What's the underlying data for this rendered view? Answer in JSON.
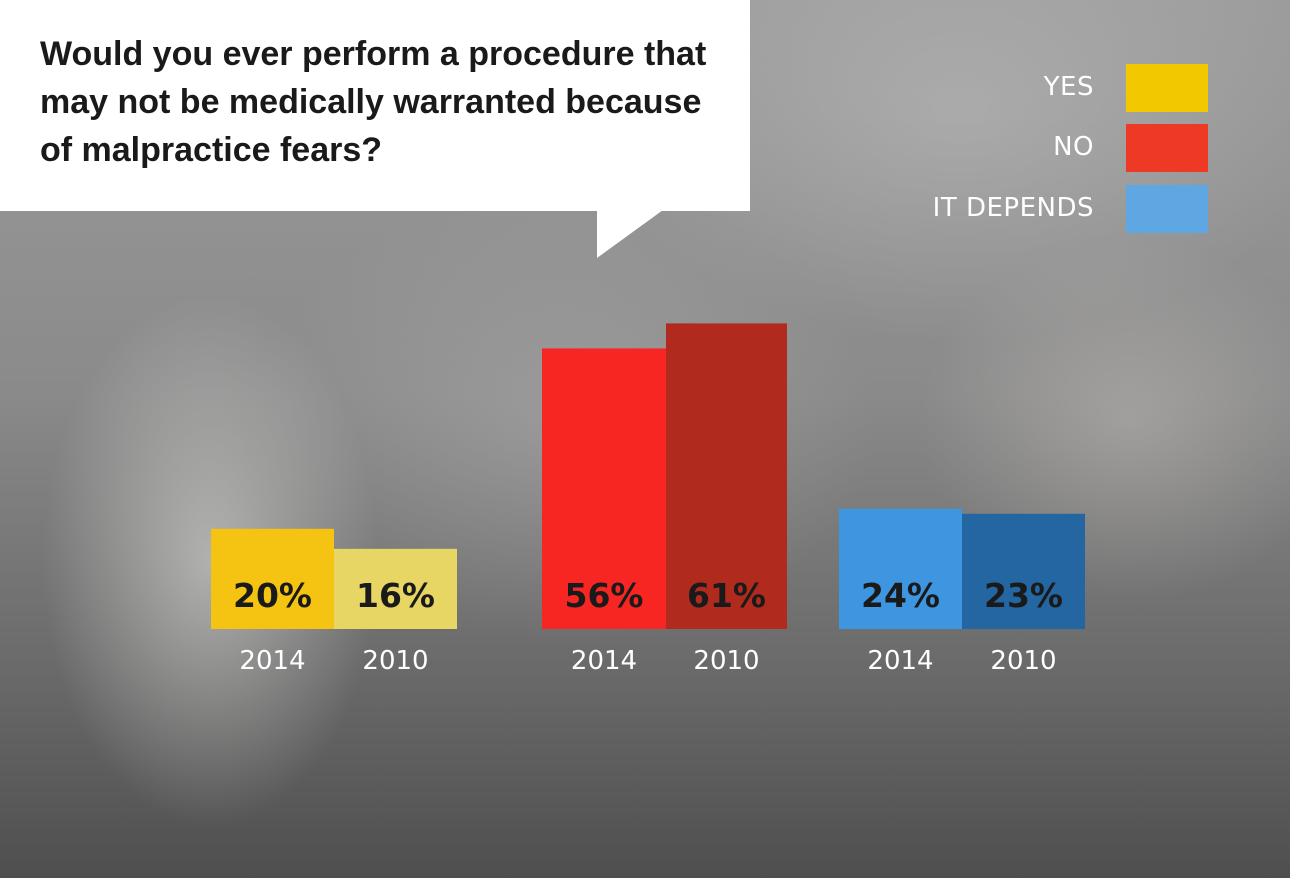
{
  "question": "Would you ever perform a procedure that may not be medically warranted because of malpractice fears?",
  "legend": [
    {
      "label": "YES",
      "color": "#f2c800"
    },
    {
      "label": "NO",
      "color": "#ee3a24"
    },
    {
      "label": "IT DEPENDS",
      "color": "#5fa7e2"
    }
  ],
  "chart_data": {
    "type": "bar",
    "title": "Would you ever perform a procedure that may not be medically warranted because of malpractice fears?",
    "categories": [
      "YES",
      "NO",
      "IT DEPENDS"
    ],
    "series": [
      {
        "name": "2014",
        "values": [
          20,
          56,
          24
        ]
      },
      {
        "name": "2010",
        "values": [
          16,
          61,
          23
        ]
      }
    ],
    "value_labels": [
      [
        "20%",
        "16%"
      ],
      [
        "56%",
        "61%"
      ],
      [
        "24%",
        "23%"
      ]
    ],
    "colors": [
      [
        "#f5c312",
        "#e7d664"
      ],
      [
        "#f72622",
        "#b02a1e"
      ],
      [
        "#3e96e0",
        "#2366a1"
      ]
    ],
    "label_colors": [
      [
        "#1a1a1a",
        "#1a1a1a"
      ],
      [
        "#1a1a1a",
        "#1a1a1a"
      ],
      [
        "#1a1a1a",
        "#1a1a1a"
      ]
    ],
    "unit": "%",
    "ylim": [
      0,
      70
    ],
    "xlabel": "",
    "ylabel": "",
    "grid": false,
    "legend_position": "top-right"
  }
}
